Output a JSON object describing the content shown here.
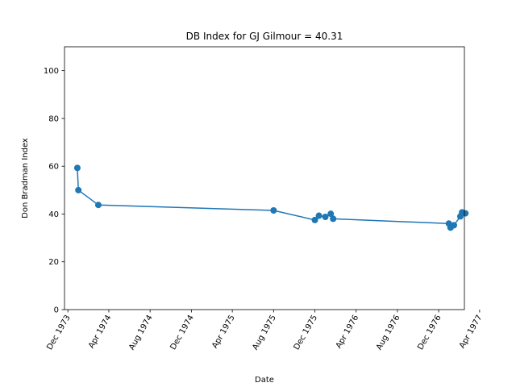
{
  "chart_data": {
    "type": "line",
    "title": "DB Index for GJ Gilmour = 40.31",
    "xlabel": "Date",
    "ylabel": "Don Bradman Index",
    "ylim": [
      0,
      110
    ],
    "yticks": [
      0,
      20,
      40,
      60,
      80,
      100
    ],
    "xlim": [
      "1973-11-21",
      "1977-02-15"
    ],
    "xticks": [
      {
        "date": "1973-12-01",
        "label": "Dec 1973"
      },
      {
        "date": "1974-04-01",
        "label": "Apr 1974"
      },
      {
        "date": "1974-08-01",
        "label": "Aug 1974"
      },
      {
        "date": "1974-12-01",
        "label": "Dec 1974"
      },
      {
        "date": "1975-04-01",
        "label": "Apr 1975"
      },
      {
        "date": "1975-08-01",
        "label": "Aug 1975"
      },
      {
        "date": "1975-12-01",
        "label": "Dec 1975"
      },
      {
        "date": "1976-04-01",
        "label": "Apr 1976"
      },
      {
        "date": "1976-08-01",
        "label": "Aug 1976"
      },
      {
        "date": "1976-12-01",
        "label": "Dec 1976"
      },
      {
        "date": "1977-04-01",
        "label": "Apr 1977"
      }
    ],
    "series": [
      {
        "name": "DB Index",
        "color": "#1f77b4",
        "points": [
          {
            "x": "1973-12-29",
            "y": 59.3
          },
          {
            "x": "1974-01-01",
            "y": 50.0
          },
          {
            "x": "1974-03-01",
            "y": 43.8
          },
          {
            "x": "1975-08-01",
            "y": 41.5
          },
          {
            "x": "1975-12-01",
            "y": 37.5
          },
          {
            "x": "1975-12-13",
            "y": 39.3
          },
          {
            "x": "1976-01-01",
            "y": 38.8
          },
          {
            "x": "1976-01-17",
            "y": 40.1
          },
          {
            "x": "1976-01-24",
            "y": 38.0
          },
          {
            "x": "1976-12-31",
            "y": 36.0
          },
          {
            "x": "1977-01-05",
            "y": 34.3
          },
          {
            "x": "1977-01-15",
            "y": 35.3
          },
          {
            "x": "1977-02-03",
            "y": 39.0
          },
          {
            "x": "1977-02-08",
            "y": 40.7
          },
          {
            "x": "1977-02-18",
            "y": 40.3
          }
        ]
      }
    ]
  }
}
